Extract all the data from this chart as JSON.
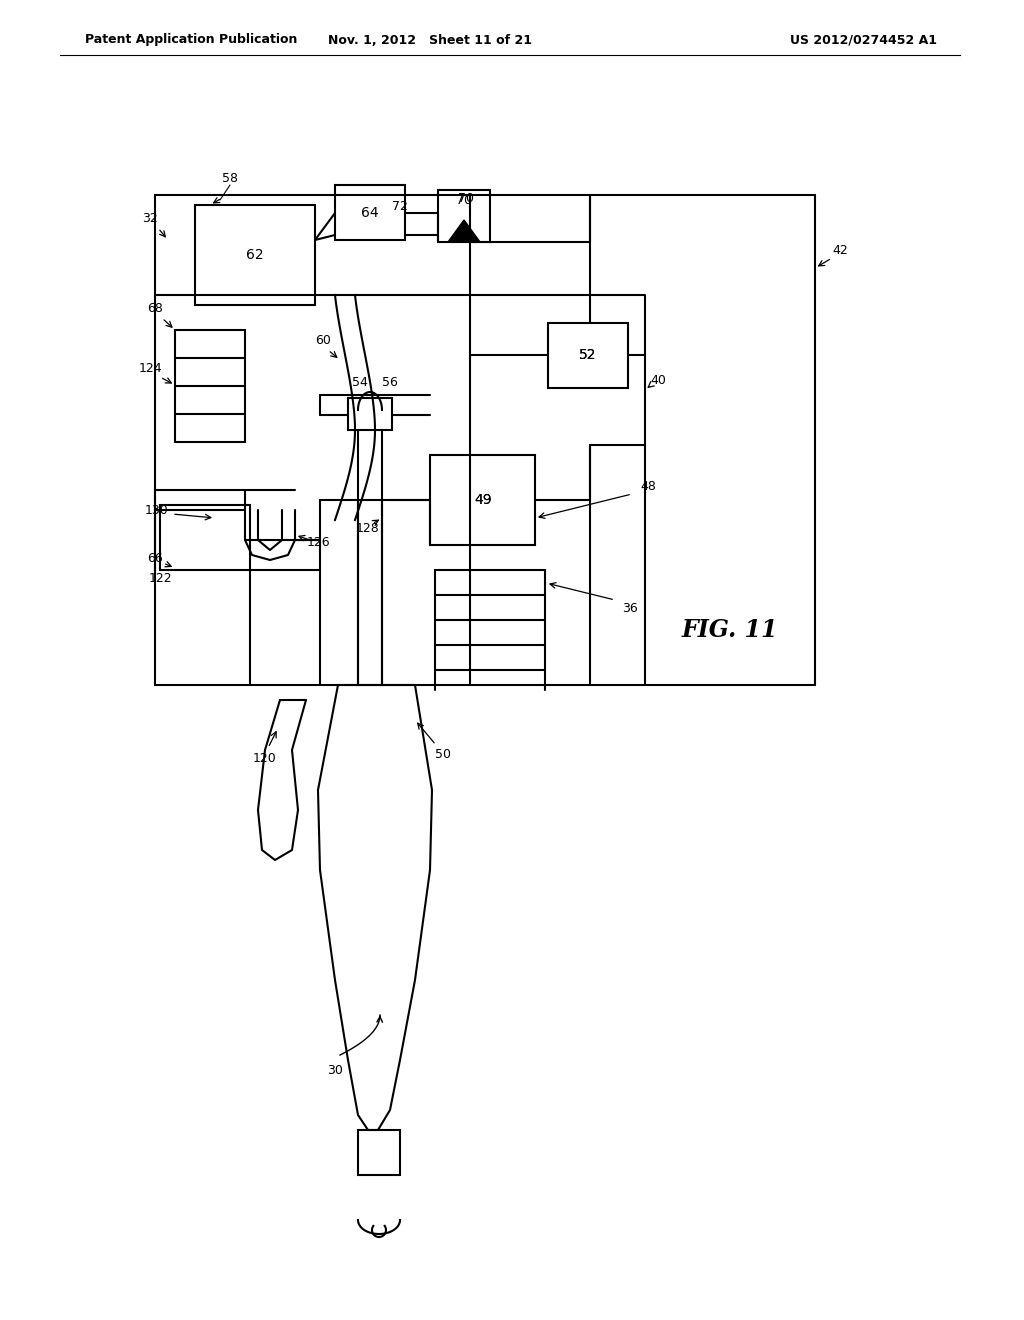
{
  "bg_color": "#ffffff",
  "line_color": "#000000",
  "header_left": "Patent Application Publication",
  "header_center": "Nov. 1, 2012   Sheet 11 of 21",
  "header_right": "US 2012/0274452 A1",
  "fig_label": "FIG. 11"
}
